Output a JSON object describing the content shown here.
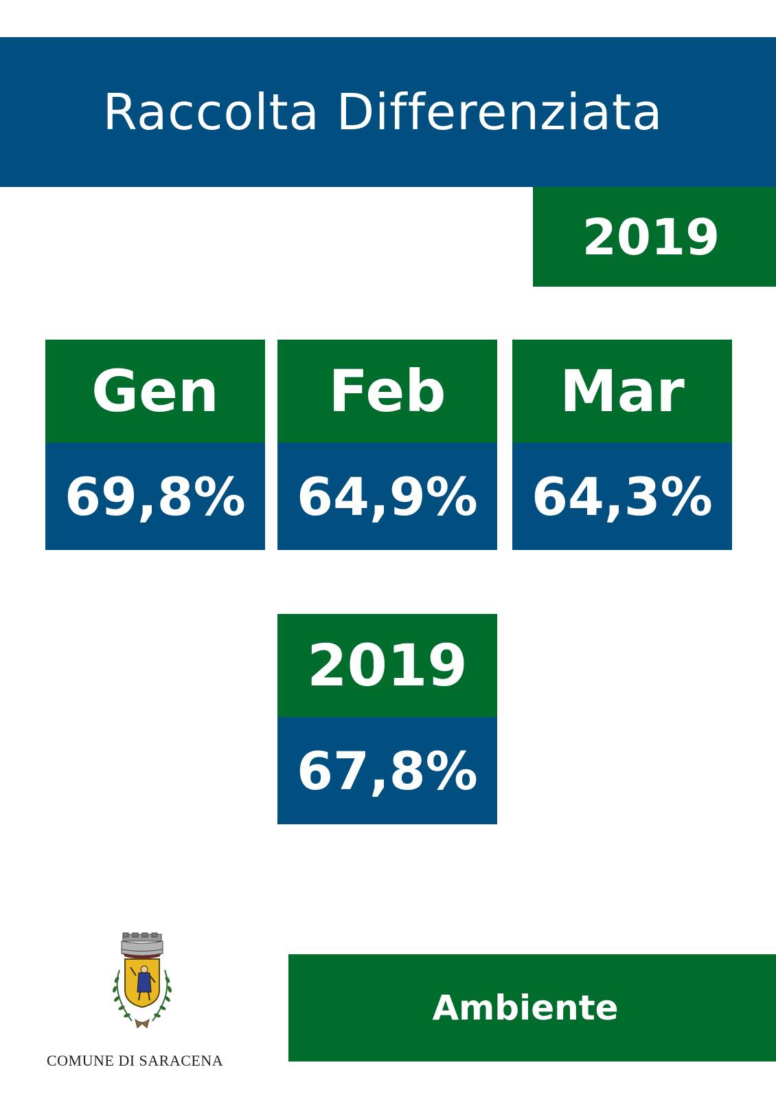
{
  "header": {
    "title": "Raccolta Differenziata",
    "year": "2019"
  },
  "months": [
    {
      "label": "Gen",
      "value": "69,8%"
    },
    {
      "label": "Feb",
      "value": "64,9%"
    },
    {
      "label": "Mar",
      "value": "64,3%"
    }
  ],
  "summary": {
    "label": "2019",
    "value": "67,8%"
  },
  "footer": {
    "logo_caption": "COMUNE DI SARACENA",
    "section": "Ambiente"
  },
  "colors": {
    "blue": "#004f80",
    "green": "#016d2d"
  }
}
